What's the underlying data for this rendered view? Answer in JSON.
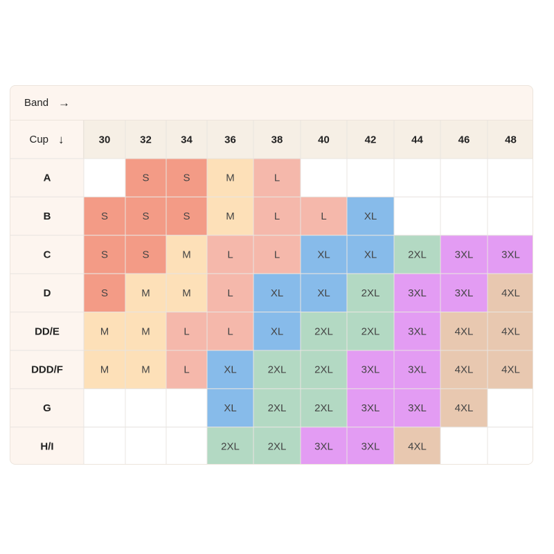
{
  "header": {
    "band_label": "Band",
    "band_arrow": "→",
    "cup_label": "Cup",
    "cup_arrow": "↓"
  },
  "colors": {
    "S": "#f39b86",
    "M": "#fde0b8",
    "L": "#f5b8ab",
    "XL": "#87bbea",
    "2XL": "#b3d9c3",
    "3XL": "#e39cf3",
    "4XL": "#e8c8b0",
    "header_bg": "#f6efe5",
    "row_header_bg": "#fdf5ef",
    "empty": "#ffffff",
    "grid": "#e8e4e0"
  },
  "chart_data": {
    "type": "table",
    "columns": [
      "30",
      "32",
      "34",
      "36",
      "38",
      "40",
      "42",
      "44",
      "46",
      "48"
    ],
    "rows": [
      {
        "cup": "A",
        "sizes": [
          "",
          "S",
          "S",
          "M",
          "L",
          "",
          "",
          "",
          "",
          ""
        ]
      },
      {
        "cup": "B",
        "sizes": [
          "S",
          "S",
          "S",
          "M",
          "L",
          "L",
          "XL",
          "",
          "",
          ""
        ]
      },
      {
        "cup": "C",
        "sizes": [
          "S",
          "S",
          "M",
          "L",
          "L",
          "XL",
          "XL",
          "2XL",
          "3XL",
          "3XL"
        ]
      },
      {
        "cup": "D",
        "sizes": [
          "S",
          "M",
          "M",
          "L",
          "XL",
          "XL",
          "2XL",
          "3XL",
          "3XL",
          "4XL"
        ]
      },
      {
        "cup": "DD/E",
        "sizes": [
          "M",
          "M",
          "L",
          "L",
          "XL",
          "2XL",
          "2XL",
          "3XL",
          "4XL",
          "4XL"
        ]
      },
      {
        "cup": "DDD/F",
        "sizes": [
          "M",
          "M",
          "L",
          "XL",
          "2XL",
          "2XL",
          "3XL",
          "3XL",
          "4XL",
          "4XL"
        ]
      },
      {
        "cup": "G",
        "sizes": [
          "",
          "",
          "",
          "XL",
          "2XL",
          "2XL",
          "3XL",
          "3XL",
          "4XL",
          ""
        ]
      },
      {
        "cup": "H/I",
        "sizes": [
          "",
          "",
          "",
          "2XL",
          "2XL",
          "3XL",
          "3XL",
          "4XL",
          "",
          ""
        ]
      }
    ]
  }
}
